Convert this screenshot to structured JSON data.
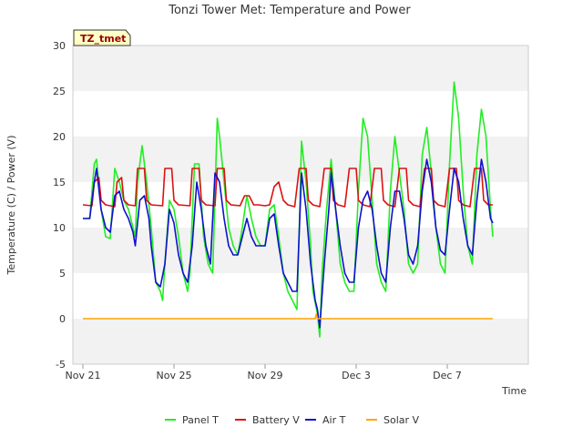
{
  "chart_data": {
    "type": "line",
    "title": "Tonzi Tower Met: Temperature and Power",
    "xlabel": "Time",
    "ylabel": "Temperature (C) / Power (V)",
    "site_tag": "TZ_tmet",
    "ylim": [
      -5,
      30
    ],
    "yticks": [
      -5,
      0,
      5,
      10,
      15,
      20,
      25,
      30
    ],
    "xlim": [
      0,
      18
    ],
    "x_unit": "days since Nov 21",
    "xticks": [
      {
        "value": 0,
        "label": "Nov 21"
      },
      {
        "value": 4,
        "label": "Nov 25"
      },
      {
        "value": 8,
        "label": "Nov 29"
      },
      {
        "value": 12,
        "label": "Dec 3"
      },
      {
        "value": 16,
        "label": "Dec 7"
      }
    ],
    "grid": "horizontal bands",
    "legend_position": "bottom",
    "series": [
      {
        "name": "Panel T",
        "color": "#22ee22",
        "points": [
          [
            0,
            11
          ],
          [
            0.3,
            11
          ],
          [
            0.5,
            17
          ],
          [
            0.6,
            17.5
          ],
          [
            0.8,
            12
          ],
          [
            1,
            9
          ],
          [
            1.2,
            8.8
          ],
          [
            1.4,
            16.5
          ],
          [
            1.6,
            15
          ],
          [
            1.8,
            13
          ],
          [
            2.0,
            12
          ],
          [
            2.2,
            10
          ],
          [
            2.3,
            9
          ],
          [
            2.4,
            15
          ],
          [
            2.6,
            19
          ],
          [
            2.8,
            15
          ],
          [
            3.0,
            10
          ],
          [
            3.2,
            4
          ],
          [
            3.4,
            3
          ],
          [
            3.5,
            2
          ],
          [
            3.6,
            6
          ],
          [
            3.8,
            13
          ],
          [
            4.0,
            12
          ],
          [
            4.2,
            9
          ],
          [
            4.4,
            5
          ],
          [
            4.6,
            3
          ],
          [
            4.7,
            5
          ],
          [
            4.9,
            17
          ],
          [
            5.1,
            17
          ],
          [
            5.3,
            9
          ],
          [
            5.5,
            6
          ],
          [
            5.7,
            5
          ],
          [
            5.9,
            22
          ],
          [
            6.0,
            20
          ],
          [
            6.2,
            15
          ],
          [
            6.4,
            10
          ],
          [
            6.6,
            8
          ],
          [
            6.8,
            7
          ],
          [
            7.0,
            10
          ],
          [
            7.2,
            13.5
          ],
          [
            7.4,
            11
          ],
          [
            7.6,
            9
          ],
          [
            7.8,
            8
          ],
          [
            8.0,
            8
          ],
          [
            8.2,
            12
          ],
          [
            8.4,
            12.5
          ],
          [
            8.6,
            9
          ],
          [
            8.8,
            5
          ],
          [
            9.0,
            3
          ],
          [
            9.2,
            2
          ],
          [
            9.4,
            1
          ],
          [
            9.5,
            10
          ],
          [
            9.6,
            19.5
          ],
          [
            9.8,
            15
          ],
          [
            10.0,
            8
          ],
          [
            10.1,
            3
          ],
          [
            10.3,
            0.5
          ],
          [
            10.4,
            -2
          ],
          [
            10.5,
            5
          ],
          [
            10.7,
            12
          ],
          [
            10.9,
            17.5
          ],
          [
            11.1,
            12
          ],
          [
            11.3,
            6
          ],
          [
            11.5,
            4
          ],
          [
            11.7,
            3
          ],
          [
            11.9,
            3
          ],
          [
            12.1,
            14
          ],
          [
            12.3,
            22
          ],
          [
            12.5,
            20
          ],
          [
            12.7,
            13
          ],
          [
            12.9,
            6
          ],
          [
            13.1,
            4
          ],
          [
            13.3,
            3
          ],
          [
            13.5,
            14
          ],
          [
            13.7,
            20
          ],
          [
            13.9,
            16
          ],
          [
            14.1,
            12
          ],
          [
            14.3,
            6
          ],
          [
            14.5,
            5
          ],
          [
            14.7,
            6
          ],
          [
            14.9,
            18
          ],
          [
            15.1,
            21
          ],
          [
            15.3,
            16
          ],
          [
            15.5,
            10
          ],
          [
            15.7,
            6
          ],
          [
            15.9,
            5
          ],
          [
            16.1,
            17
          ],
          [
            16.3,
            26
          ],
          [
            16.5,
            22
          ],
          [
            16.7,
            14
          ],
          [
            16.9,
            8
          ],
          [
            17.1,
            6
          ],
          [
            17.3,
            18
          ],
          [
            17.5,
            23
          ],
          [
            17.7,
            20
          ],
          [
            17.9,
            12
          ],
          [
            18.0,
            9
          ]
        ]
      },
      {
        "name": "Battery V",
        "color": "#dd1111",
        "points": [
          [
            0,
            12.5
          ],
          [
            0.4,
            12.4
          ],
          [
            0.5,
            15
          ],
          [
            0.7,
            15.5
          ],
          [
            0.8,
            13
          ],
          [
            1.0,
            12.5
          ],
          [
            1.4,
            12.3
          ],
          [
            1.5,
            15
          ],
          [
            1.7,
            15.5
          ],
          [
            1.8,
            13
          ],
          [
            2.0,
            12.5
          ],
          [
            2.3,
            12.4
          ],
          [
            2.4,
            16.5
          ],
          [
            2.7,
            16.5
          ],
          [
            2.8,
            13
          ],
          [
            3.0,
            12.5
          ],
          [
            3.5,
            12.4
          ],
          [
            3.6,
            16.5
          ],
          [
            3.9,
            16.5
          ],
          [
            4.0,
            13
          ],
          [
            4.2,
            12.5
          ],
          [
            4.7,
            12.4
          ],
          [
            4.8,
            16.5
          ],
          [
            5.1,
            16.5
          ],
          [
            5.2,
            13
          ],
          [
            5.4,
            12.5
          ],
          [
            5.8,
            12.4
          ],
          [
            5.9,
            16.5
          ],
          [
            6.2,
            16.5
          ],
          [
            6.3,
            13
          ],
          [
            6.5,
            12.5
          ],
          [
            6.9,
            12.4
          ],
          [
            7.1,
            13.5
          ],
          [
            7.3,
            13.5
          ],
          [
            7.5,
            12.5
          ],
          [
            7.7,
            12.5
          ],
          [
            8.0,
            12.4
          ],
          [
            8.2,
            12.5
          ],
          [
            8.4,
            14.5
          ],
          [
            8.6,
            15
          ],
          [
            8.8,
            13
          ],
          [
            9.0,
            12.5
          ],
          [
            9.3,
            12.3
          ],
          [
            9.5,
            16.5
          ],
          [
            9.8,
            16.5
          ],
          [
            9.9,
            13
          ],
          [
            10.1,
            12.5
          ],
          [
            10.4,
            12.3
          ],
          [
            10.6,
            16.5
          ],
          [
            10.9,
            16.5
          ],
          [
            11.0,
            13
          ],
          [
            11.2,
            12.5
          ],
          [
            11.5,
            12.3
          ],
          [
            11.7,
            16.5
          ],
          [
            12.0,
            16.5
          ],
          [
            12.1,
            13
          ],
          [
            12.3,
            12.5
          ],
          [
            12.6,
            12.3
          ],
          [
            12.8,
            16.5
          ],
          [
            13.1,
            16.5
          ],
          [
            13.2,
            13
          ],
          [
            13.4,
            12.5
          ],
          [
            13.7,
            12.3
          ],
          [
            13.9,
            16.5
          ],
          [
            14.2,
            16.5
          ],
          [
            14.3,
            13
          ],
          [
            14.5,
            12.5
          ],
          [
            14.8,
            12.3
          ],
          [
            15.0,
            16.5
          ],
          [
            15.3,
            16.5
          ],
          [
            15.4,
            13
          ],
          [
            15.6,
            12.5
          ],
          [
            15.9,
            12.3
          ],
          [
            16.1,
            16.5
          ],
          [
            16.4,
            16.5
          ],
          [
            16.5,
            13
          ],
          [
            16.7,
            12.5
          ],
          [
            17.0,
            12.3
          ],
          [
            17.2,
            16.5
          ],
          [
            17.5,
            16.5
          ],
          [
            17.6,
            13
          ],
          [
            17.8,
            12.5
          ],
          [
            18.0,
            12.5
          ]
        ]
      },
      {
        "name": "Air T",
        "color": "#1111cc",
        "points": [
          [
            0,
            11
          ],
          [
            0.3,
            11
          ],
          [
            0.5,
            15
          ],
          [
            0.6,
            16.5
          ],
          [
            0.8,
            12
          ],
          [
            1.0,
            10
          ],
          [
            1.2,
            9.5
          ],
          [
            1.4,
            13.5
          ],
          [
            1.6,
            14
          ],
          [
            1.8,
            12
          ],
          [
            2.0,
            11
          ],
          [
            2.2,
            9.5
          ],
          [
            2.3,
            8
          ],
          [
            2.5,
            13
          ],
          [
            2.7,
            13.5
          ],
          [
            2.9,
            11
          ],
          [
            3.0,
            8
          ],
          [
            3.2,
            4
          ],
          [
            3.4,
            3.5
          ],
          [
            3.6,
            6
          ],
          [
            3.8,
            12
          ],
          [
            4.0,
            10.5
          ],
          [
            4.2,
            7
          ],
          [
            4.4,
            5
          ],
          [
            4.6,
            4
          ],
          [
            4.8,
            8
          ],
          [
            5.0,
            15
          ],
          [
            5.2,
            12
          ],
          [
            5.4,
            8
          ],
          [
            5.6,
            6
          ],
          [
            5.8,
            16
          ],
          [
            6.0,
            15
          ],
          [
            6.2,
            11
          ],
          [
            6.4,
            8
          ],
          [
            6.6,
            7
          ],
          [
            6.8,
            7
          ],
          [
            7.0,
            9
          ],
          [
            7.2,
            11
          ],
          [
            7.4,
            9
          ],
          [
            7.6,
            8
          ],
          [
            7.8,
            8
          ],
          [
            8.0,
            8
          ],
          [
            8.2,
            11
          ],
          [
            8.4,
            11.5
          ],
          [
            8.6,
            8
          ],
          [
            8.8,
            5
          ],
          [
            9.0,
            4
          ],
          [
            9.2,
            3
          ],
          [
            9.4,
            3
          ],
          [
            9.6,
            16
          ],
          [
            9.8,
            12
          ],
          [
            10.0,
            6
          ],
          [
            10.2,
            2
          ],
          [
            10.3,
            1
          ],
          [
            10.4,
            -1
          ],
          [
            10.6,
            6
          ],
          [
            10.8,
            12
          ],
          [
            10.9,
            16
          ],
          [
            11.1,
            12
          ],
          [
            11.3,
            8
          ],
          [
            11.5,
            5
          ],
          [
            11.7,
            4
          ],
          [
            11.9,
            4
          ],
          [
            12.1,
            10
          ],
          [
            12.3,
            13
          ],
          [
            12.5,
            14
          ],
          [
            12.7,
            12
          ],
          [
            12.9,
            8
          ],
          [
            13.1,
            5
          ],
          [
            13.3,
            4
          ],
          [
            13.5,
            10
          ],
          [
            13.7,
            14
          ],
          [
            13.9,
            14
          ],
          [
            14.1,
            11
          ],
          [
            14.3,
            7
          ],
          [
            14.5,
            6
          ],
          [
            14.7,
            8
          ],
          [
            14.9,
            14
          ],
          [
            15.1,
            17.5
          ],
          [
            15.3,
            15
          ],
          [
            15.5,
            10
          ],
          [
            15.7,
            7.5
          ],
          [
            15.9,
            7
          ],
          [
            16.1,
            12
          ],
          [
            16.3,
            16.5
          ],
          [
            16.5,
            15
          ],
          [
            16.7,
            11
          ],
          [
            16.9,
            8
          ],
          [
            17.1,
            7
          ],
          [
            17.3,
            13
          ],
          [
            17.5,
            17.5
          ],
          [
            17.7,
            15
          ],
          [
            17.9,
            11
          ],
          [
            18.0,
            10.5
          ]
        ]
      },
      {
        "name": "Solar V",
        "color": "#ffa500",
        "points": [
          [
            0,
            0
          ],
          [
            10.2,
            0
          ],
          [
            10.25,
            0.5
          ],
          [
            10.3,
            0
          ],
          [
            18,
            0
          ]
        ]
      }
    ]
  },
  "legend": [
    {
      "label": "Panel T",
      "color": "#22ee22"
    },
    {
      "label": "Battery V",
      "color": "#dd1111"
    },
    {
      "label": "Air T",
      "color": "#1111cc"
    },
    {
      "label": "Solar V",
      "color": "#ffa500"
    }
  ]
}
